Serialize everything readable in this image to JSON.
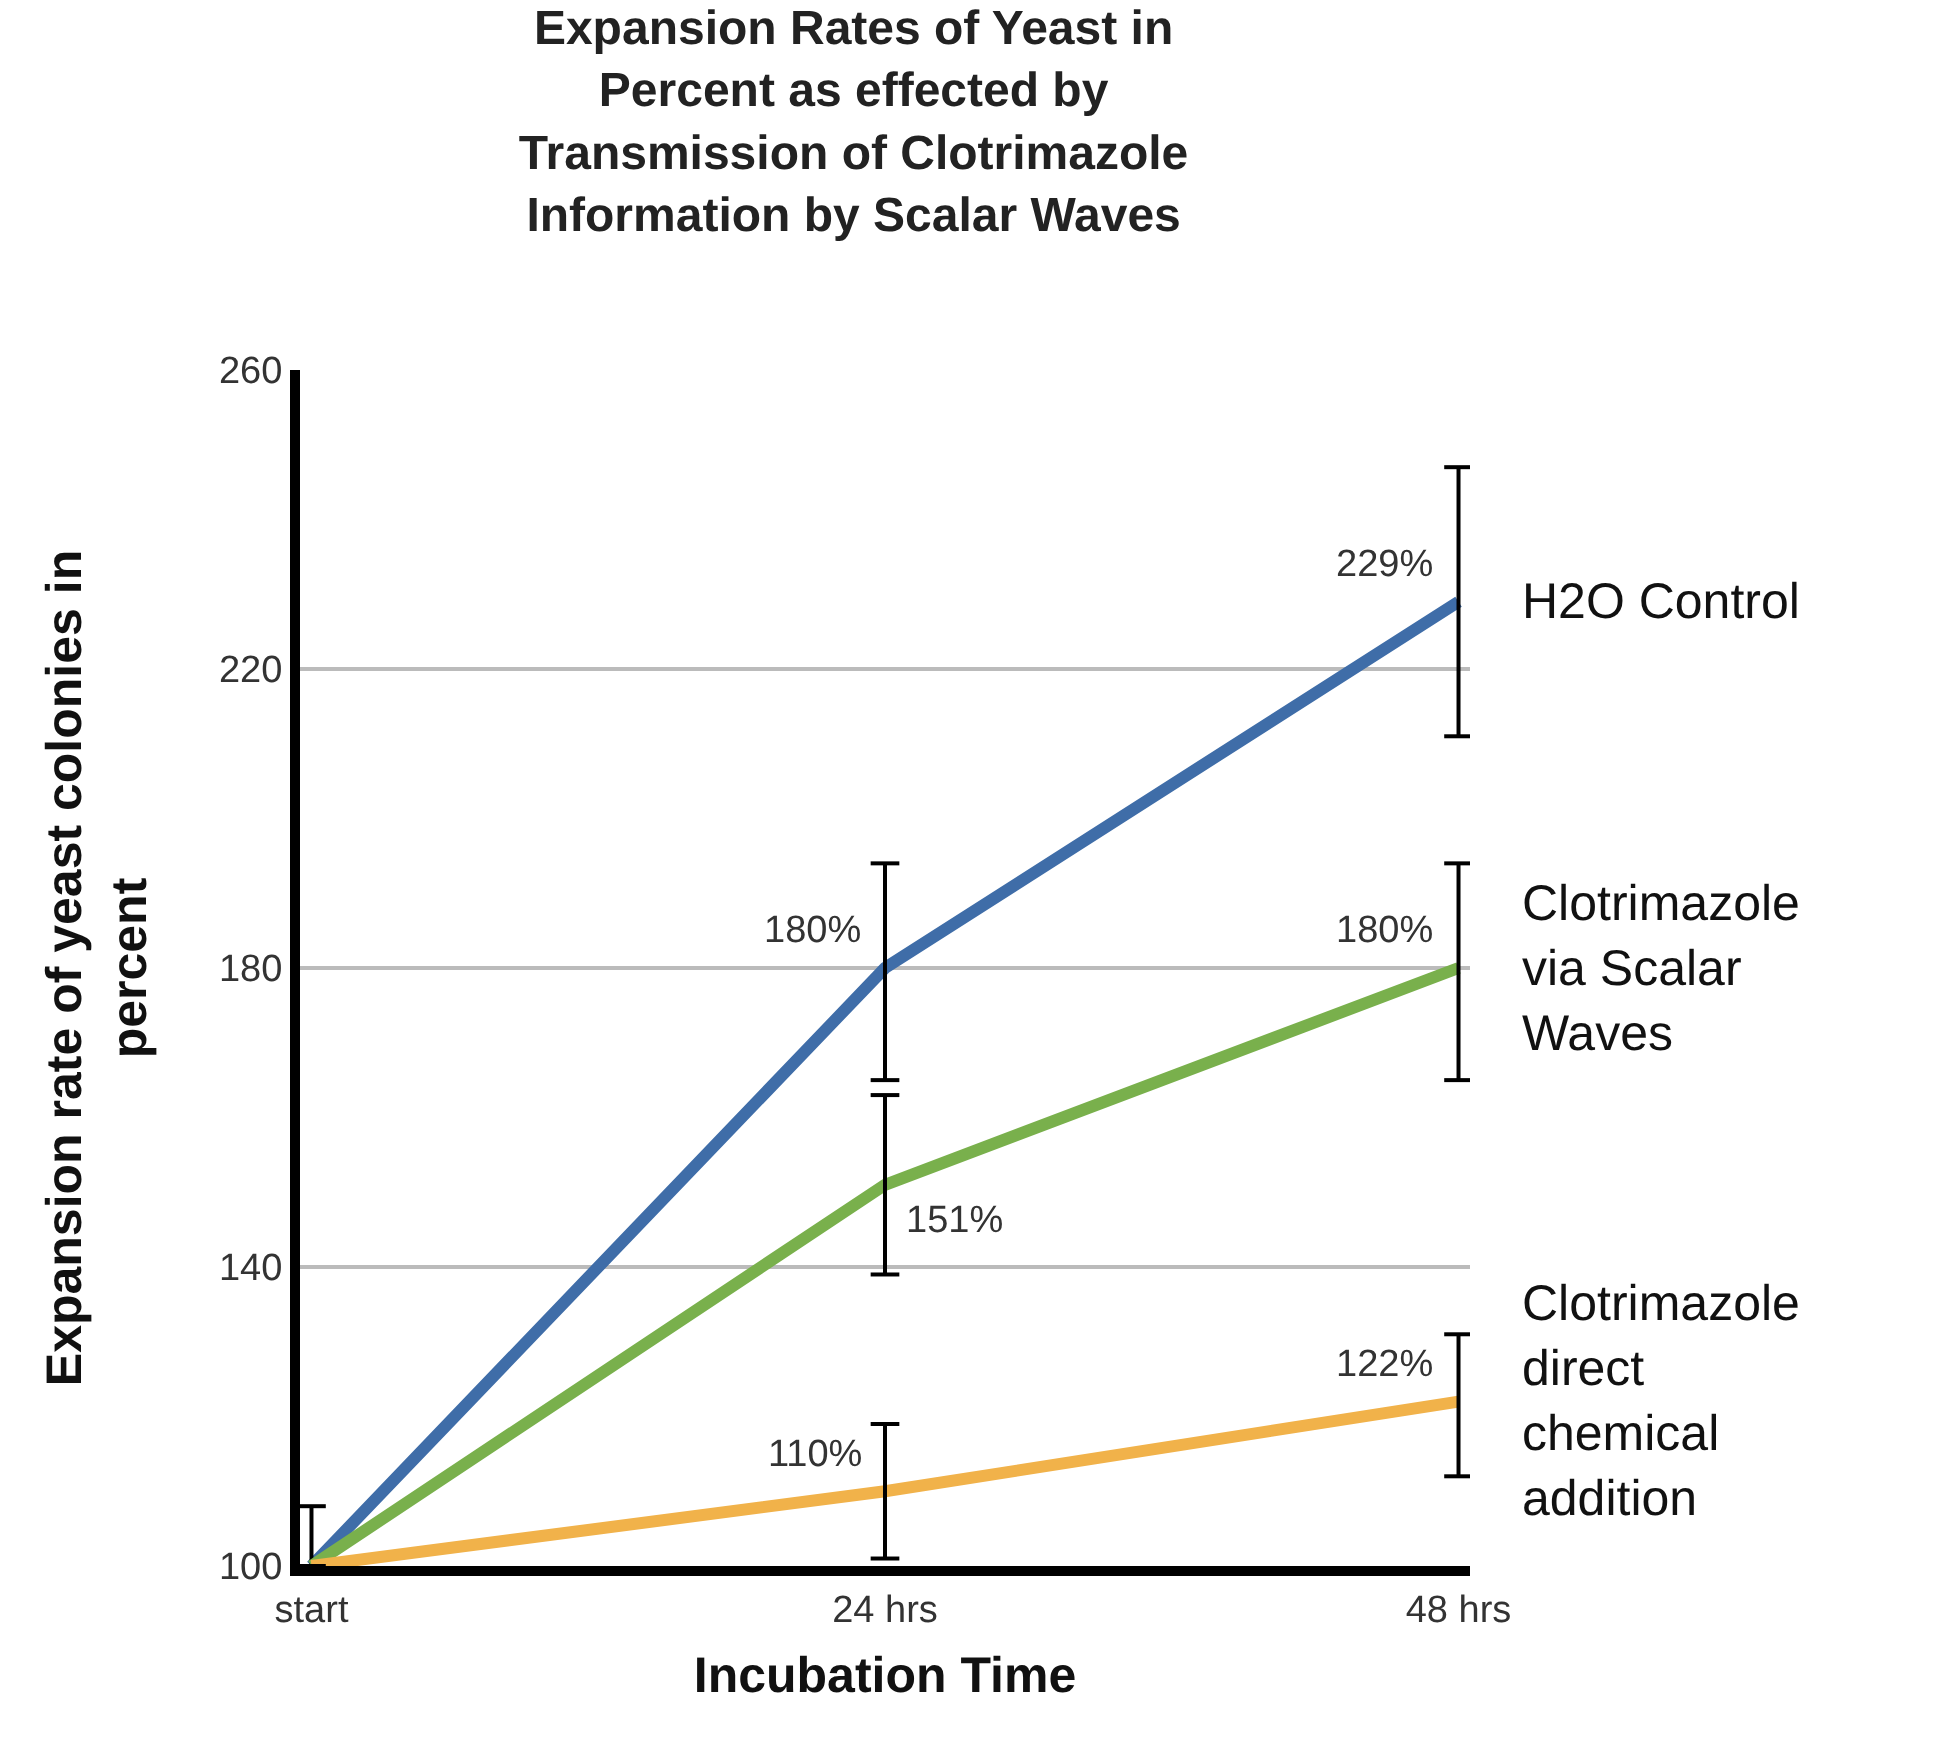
{
  "chart_data": {
    "type": "line",
    "title": "Expansion Rates of Yeast in Percent as effected by Transmission of Clotrimazole Information by Scalar Waves",
    "xlabel": "Incubation Time",
    "ylabel": "Expansion rate of yeast colonies in percent",
    "categories": [
      "start",
      "24 hrs",
      "48 hrs"
    ],
    "series": [
      {
        "name": "H2O Control",
        "color": "#3f6da8",
        "values": [
          100,
          180,
          229
        ],
        "errors": [
          [
            100,
            108
          ],
          [
            165,
            194
          ],
          [
            211,
            247
          ]
        ],
        "value_labels": [
          null,
          "180%",
          "229%"
        ]
      },
      {
        "name": "Clotrimazole via Scalar Waves",
        "color": "#79b04c",
        "values": [
          100,
          151,
          180
        ],
        "errors": [
          null,
          [
            139,
            163
          ],
          [
            165,
            194
          ]
        ],
        "value_labels": [
          null,
          "151%",
          "180%"
        ]
      },
      {
        "name": "Clotrimazole direct chemical addition",
        "color": "#f1b24a",
        "values": [
          100,
          110,
          122
        ],
        "errors": [
          null,
          [
            101,
            119
          ],
          [
            112,
            131
          ]
        ],
        "value_labels": [
          null,
          "110%",
          "122%"
        ]
      }
    ],
    "ylim": [
      100,
      260
    ],
    "yticks": [
      100,
      140,
      180,
      220,
      260
    ],
    "grid": "y",
    "legend": false,
    "marker": "none",
    "line_style": "solid"
  }
}
